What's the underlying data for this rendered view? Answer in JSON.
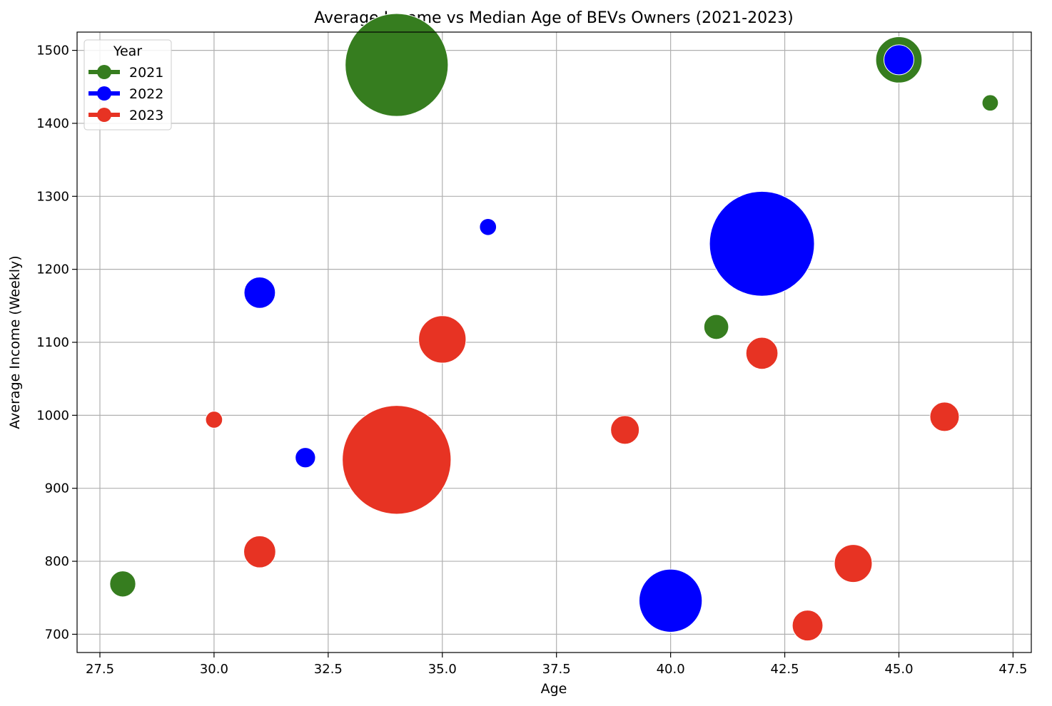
{
  "chart_data": {
    "type": "scatter",
    "variant": "bubble",
    "title": "Average Income vs Median Age of BEVs Owners (2021-2023)",
    "xlabel": "Age",
    "ylabel": "Average Income (Weekly)",
    "xlim": [
      27.0,
      47.9
    ],
    "ylim": [
      675,
      1525
    ],
    "xticks": [
      27.5,
      30.0,
      32.5,
      35.0,
      37.5,
      40.0,
      42.5,
      45.0,
      47.5
    ],
    "xtick_labels": [
      "27.5",
      "30.0",
      "32.5",
      "35.0",
      "37.5",
      "40.0",
      "42.5",
      "45.0",
      "47.5"
    ],
    "yticks": [
      700,
      800,
      900,
      1000,
      1100,
      1200,
      1300,
      1400,
      1500
    ],
    "ytick_labels": [
      "700",
      "800",
      "900",
      "1000",
      "1100",
      "1200",
      "1300",
      "1400",
      "1500"
    ],
    "grid": true,
    "legend": {
      "title": "Year",
      "placement": "top-left"
    },
    "series": [
      {
        "name": "2021",
        "color": "#367d1f",
        "points": [
          {
            "x": 34,
            "y": 1480,
            "size": 5200
          },
          {
            "x": 45,
            "y": 1487,
            "size": 1050
          },
          {
            "x": 47,
            "y": 1428,
            "size": 130
          },
          {
            "x": 41,
            "y": 1121,
            "size": 300
          },
          {
            "x": 28,
            "y": 769,
            "size": 330
          }
        ]
      },
      {
        "name": "2022",
        "color": "#0000ff",
        "points": [
          {
            "x": 42,
            "y": 1235,
            "size": 5400
          },
          {
            "x": 45,
            "y": 1487,
            "size": 440
          },
          {
            "x": 36,
            "y": 1258,
            "size": 140
          },
          {
            "x": 31,
            "y": 1168,
            "size": 480
          },
          {
            "x": 32,
            "y": 942,
            "size": 200
          },
          {
            "x": 40,
            "y": 746,
            "size": 1950
          },
          {
            "x": 44,
            "y": 797,
            "size": 700
          }
        ]
      },
      {
        "name": "2023",
        "color": "#e73323",
        "points": [
          {
            "x": 34,
            "y": 939,
            "size": 5800
          },
          {
            "x": 35,
            "y": 1104,
            "size": 1100
          },
          {
            "x": 42,
            "y": 1085,
            "size": 500
          },
          {
            "x": 39,
            "y": 980,
            "size": 400
          },
          {
            "x": 46,
            "y": 998,
            "size": 420
          },
          {
            "x": 30,
            "y": 994,
            "size": 140
          },
          {
            "x": 31,
            "y": 813,
            "size": 500
          },
          {
            "x": 44,
            "y": 797,
            "size": 700
          },
          {
            "x": 43,
            "y": 712,
            "size": 460
          }
        ]
      }
    ]
  }
}
